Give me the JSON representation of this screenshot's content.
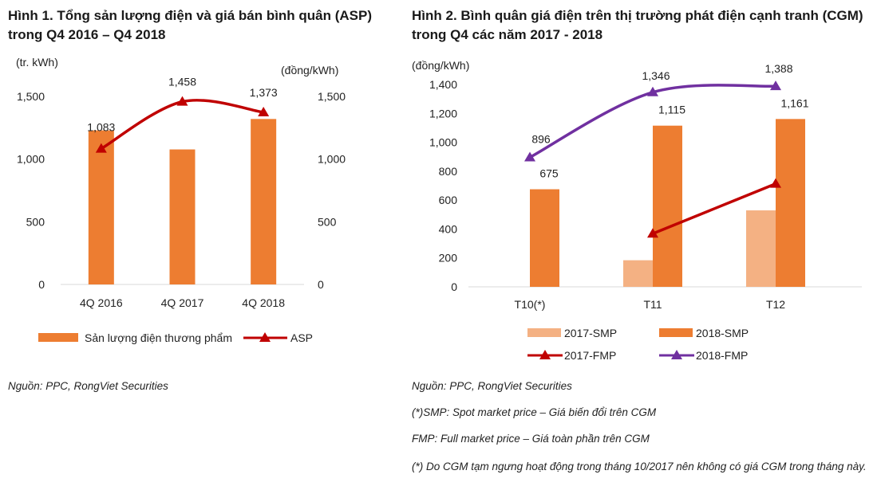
{
  "titles": {
    "fig1": "Hình 1. Tổng sản lượng điện và giá bán bình quân (ASP) trong Q4 2016 – Q4 2018",
    "fig2": "Hình 2. Bình quân giá điện trên thị trường phát điện cạnh tranh (CGM) trong Q4 các năm 2017 - 2018"
  },
  "notes": {
    "src1": "Nguồn: PPC, RongViet Securities",
    "src2": "Nguồn: PPC, RongViet Securities",
    "smp": "(*)SMP: Spot market price – Giá biến đổi trên CGM",
    "fmp": "FMP: Full market price – Giá toàn phần trên CGM",
    "star": "(*)  Do CGM tạm ngưng hoạt động trong tháng 10/2017 nên không có giá CGM trong tháng này."
  },
  "chart_data": [
    {
      "type": "bar+line",
      "ylabel": "(tr. kWh)",
      "y2label": "(đồng/kWh)",
      "ylim": [
        0,
        1500
      ],
      "y2lim": [
        0,
        1500
      ],
      "yticks": [
        "0",
        "500",
        "1,000",
        "1,500"
      ],
      "categories": [
        "4Q 2016",
        "4Q 2017",
        "4Q 2018"
      ],
      "series": [
        {
          "name": "Sản lượng điện thương phẩm",
          "type": "bar",
          "values": [
            1229,
            1077,
            1320
          ],
          "color": "#ED7D31"
        },
        {
          "name": "ASP",
          "type": "line",
          "axis": "right",
          "values": [
            1083,
            1458,
            1373
          ],
          "labels": [
            "1,083",
            "1,458",
            "1,373"
          ],
          "color": "#C00000"
        }
      ],
      "legend": "bottom"
    },
    {
      "type": "bar+line",
      "ylabel": "(đồng/kWh)",
      "ylim": [
        0,
        1400
      ],
      "yticks": [
        "0",
        "200",
        "400",
        "600",
        "800",
        "1,000",
        "1,200",
        "1,400"
      ],
      "categories": [
        "T10(*)",
        "T11",
        "T12"
      ],
      "series": [
        {
          "name": "2017-SMP",
          "type": "bar",
          "values": [
            null,
            184,
            529
          ],
          "color": "#F4B183"
        },
        {
          "name": "2018-SMP",
          "type": "bar",
          "values": [
            675,
            1115,
            1161
          ],
          "labels": [
            "675",
            "1,115",
            "1,161"
          ],
          "color": "#ED7D31"
        },
        {
          "name": "2017-FMP",
          "type": "line",
          "values": [
            null,
            368,
            713
          ],
          "color": "#C00000"
        },
        {
          "name": "2018-FMP",
          "type": "line",
          "values": [
            896,
            1346,
            1388
          ],
          "labels": [
            "896",
            "1,346",
            "1,388"
          ],
          "color": "#7030A0"
        }
      ],
      "legend": "bottom"
    }
  ]
}
